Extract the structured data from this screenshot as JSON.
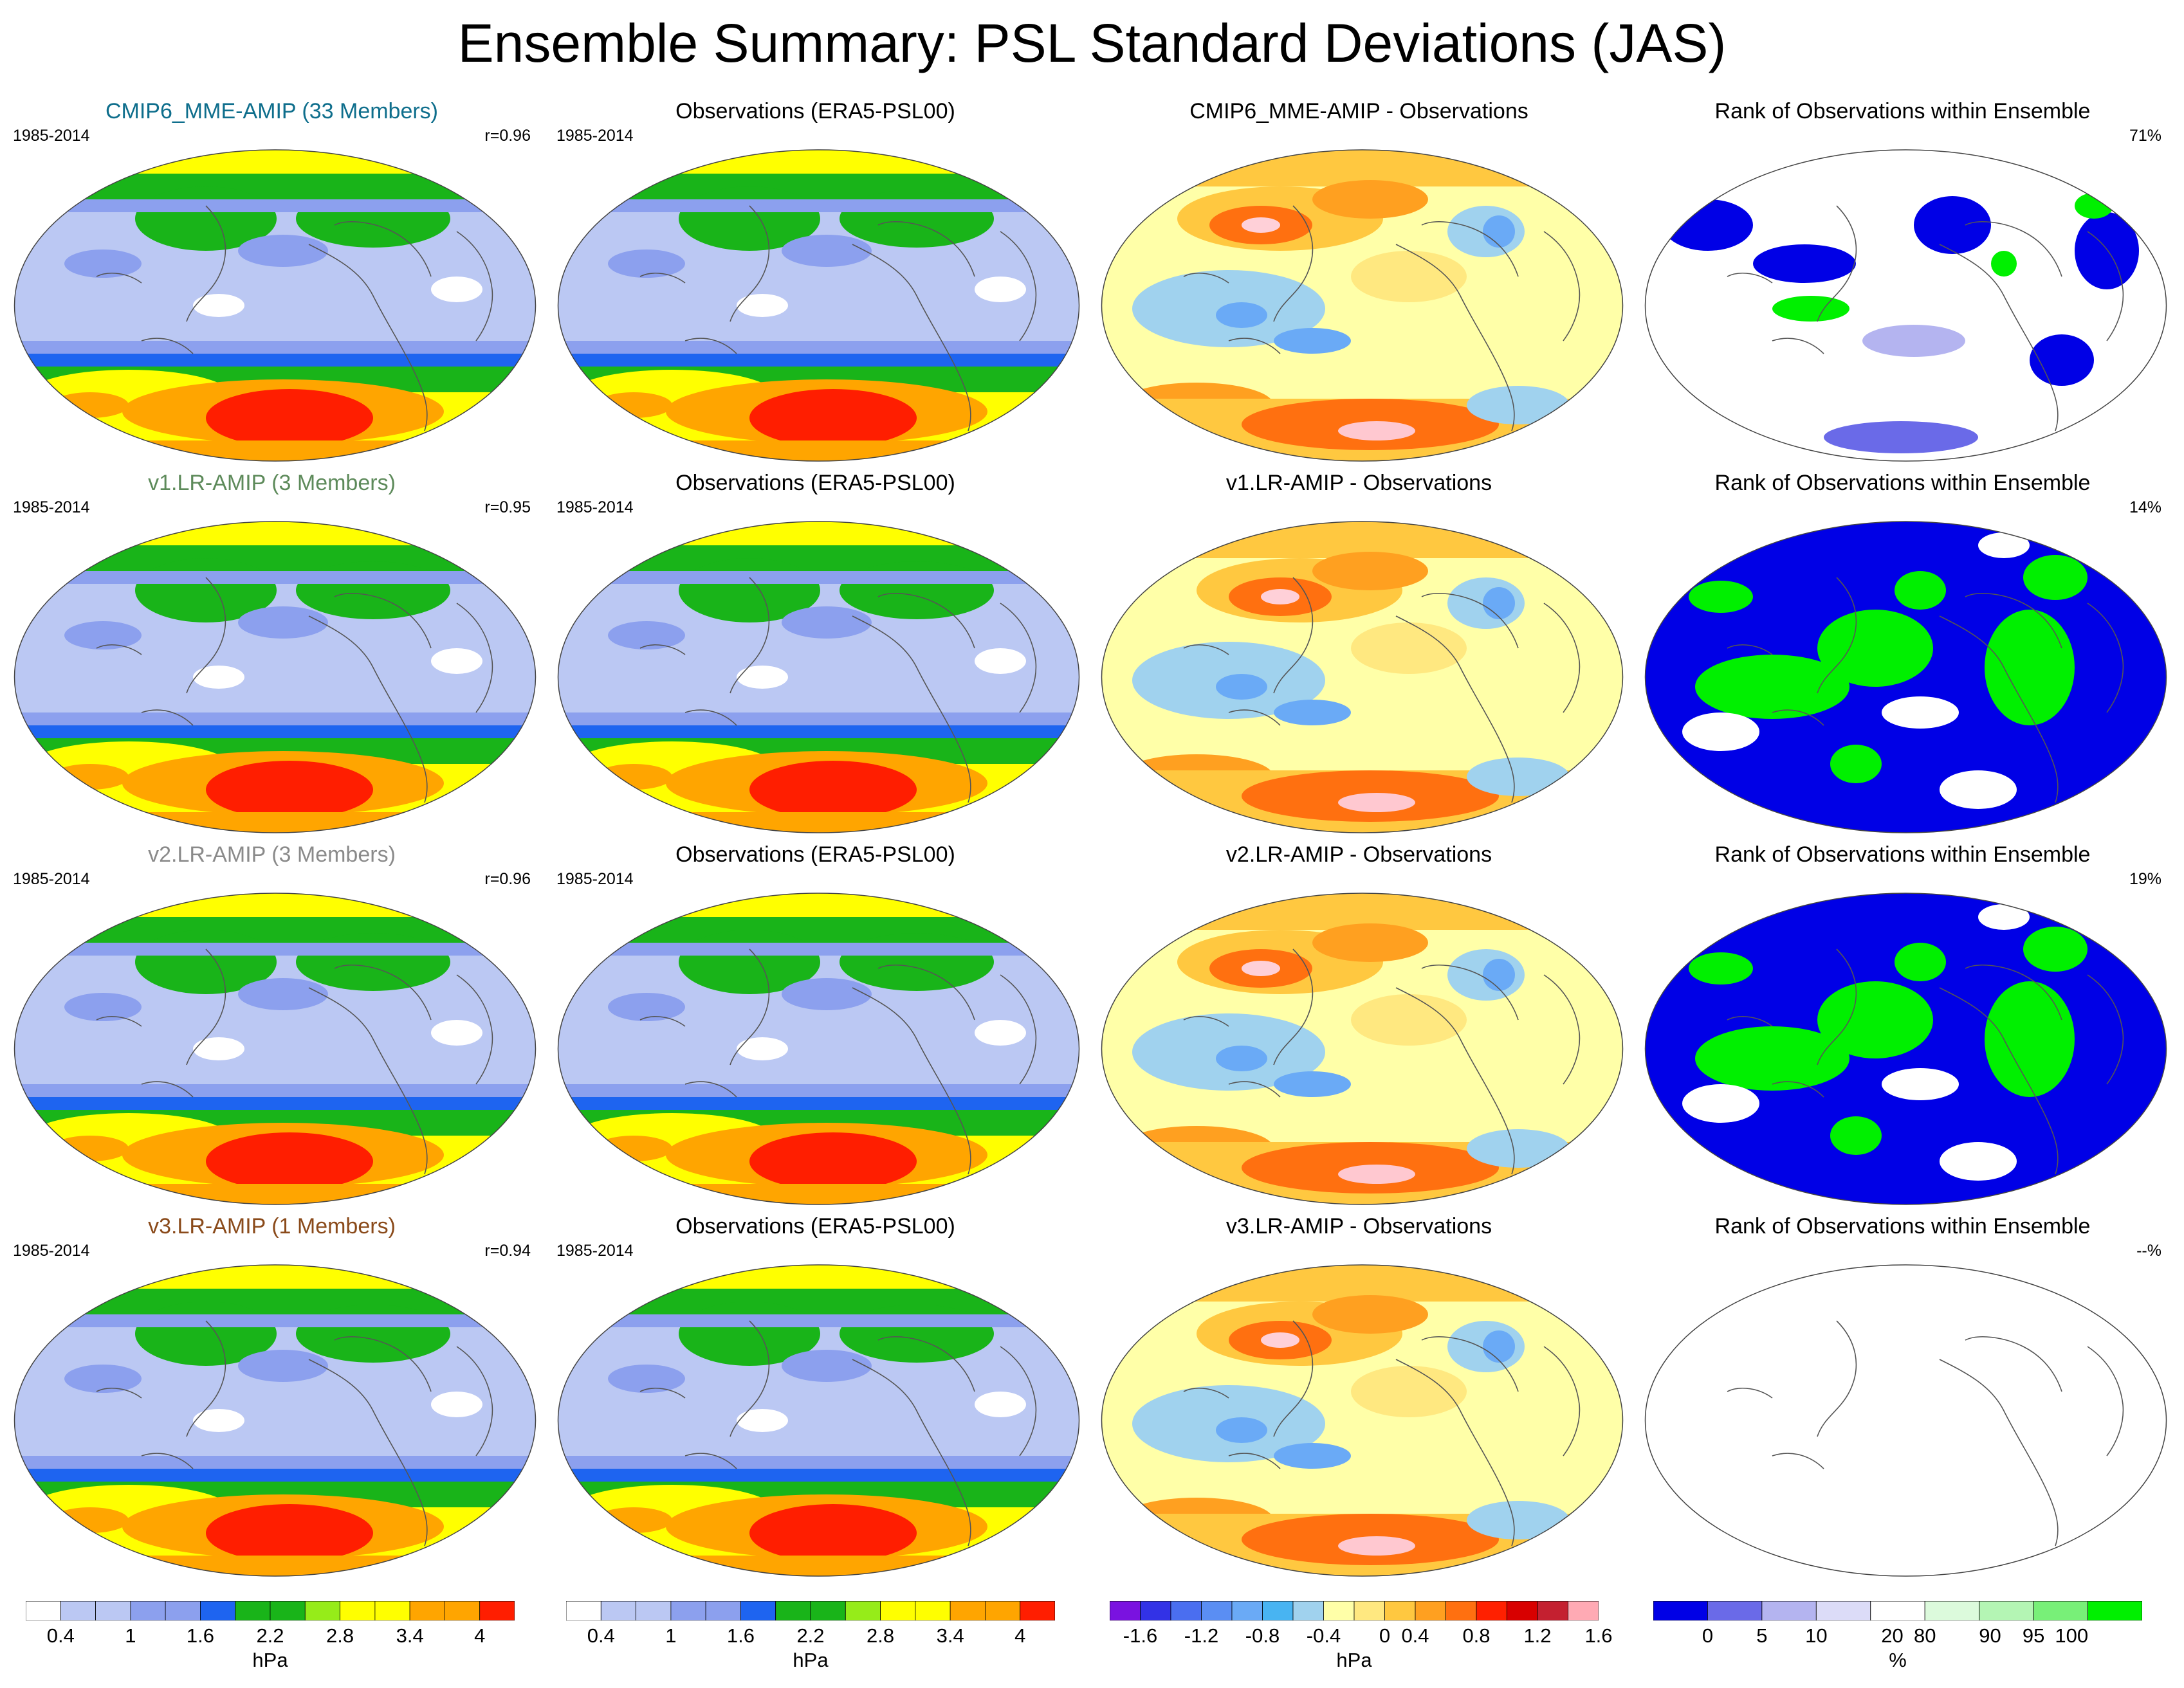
{
  "title": "Ensemble Summary: PSL Standard Deviations (JAS)",
  "rows": [
    {
      "ens_title": "CMIP6_MME-AMIP (33 Members)",
      "ens_color": "#0e6e8c",
      "period": "1985-2014",
      "r": "r=0.96",
      "obs_title": "Observations (ERA5-PSL00)",
      "obs_period": "1985-2014",
      "diff_title": "CMIP6_MME-AMIP - Observations",
      "rank_title": "Rank of Observations within Ensemble",
      "rank_pct": "71%"
    },
    {
      "ens_title": "v1.LR-AMIP (3 Members)",
      "ens_color": "#5d8a5a",
      "period": "1985-2014",
      "r": "r=0.95",
      "obs_title": "Observations (ERA5-PSL00)",
      "obs_period": "1985-2014",
      "diff_title": "v1.LR-AMIP - Observations",
      "rank_title": "Rank of Observations within Ensemble",
      "rank_pct": "14%"
    },
    {
      "ens_title": "v2.LR-AMIP (3 Members)",
      "ens_color": "#8a8a8a",
      "period": "1985-2014",
      "r": "r=0.96",
      "obs_title": "Observations (ERA5-PSL00)",
      "obs_period": "1985-2014",
      "diff_title": "v2.LR-AMIP - Observations",
      "rank_title": "Rank of Observations within Ensemble",
      "rank_pct": "19%"
    },
    {
      "ens_title": "v3.LR-AMIP (1 Members)",
      "ens_color": "#8a4a1a",
      "period": "1985-2014",
      "r": "r=0.94",
      "obs_title": "Observations (ERA5-PSL00)",
      "obs_period": "1985-2014",
      "diff_title": "v3.LR-AMIP - Observations",
      "rank_title": "Rank of Observations within Ensemble",
      "rank_pct": "--%"
    }
  ],
  "colorbars": {
    "sd": {
      "colors": [
        "#ffffff",
        "#bbc8f3",
        "#bbc8f3",
        "#8ca0ee",
        "#8ca0ee",
        "#1e64f0",
        "#19b419",
        "#19b419",
        "#96ec19",
        "#ffff00",
        "#ffff00",
        "#ffa500",
        "#ffa500",
        "#ff1e00"
      ],
      "ticks": [
        "0.4",
        "1",
        "1.6",
        "2.2",
        "2.8",
        "3.4",
        "4"
      ],
      "unit": "hPa"
    },
    "diff": {
      "colors": [
        "#7a12e0",
        "#3232e6",
        "#4a6ef0",
        "#5a8ef3",
        "#6aaaf6",
        "#48b4f2",
        "#a0d2ee",
        "#ffffa8",
        "#ffe880",
        "#ffc840",
        "#ffa020",
        "#ff7010",
        "#ff2000",
        "#d80000",
        "#c42030",
        "#ffaab4"
      ],
      "ticks": [
        "-1.6",
        "-1.2",
        "-0.8",
        "-0.4",
        "0",
        "0.4",
        "0.8",
        "1.2",
        "1.6"
      ],
      "unit": "hPa"
    },
    "rank": {
      "colors": [
        "#0000e6",
        "#6a6ae8",
        "#b4b4f0",
        "#dcdcf8",
        "#ffffff",
        "#dcfadc",
        "#b4f5b4",
        "#78f078",
        "#00f000"
      ],
      "ticks": [
        "0",
        "5",
        "10",
        "20",
        "80",
        "90",
        "95",
        "100"
      ],
      "unit": "%"
    }
  }
}
